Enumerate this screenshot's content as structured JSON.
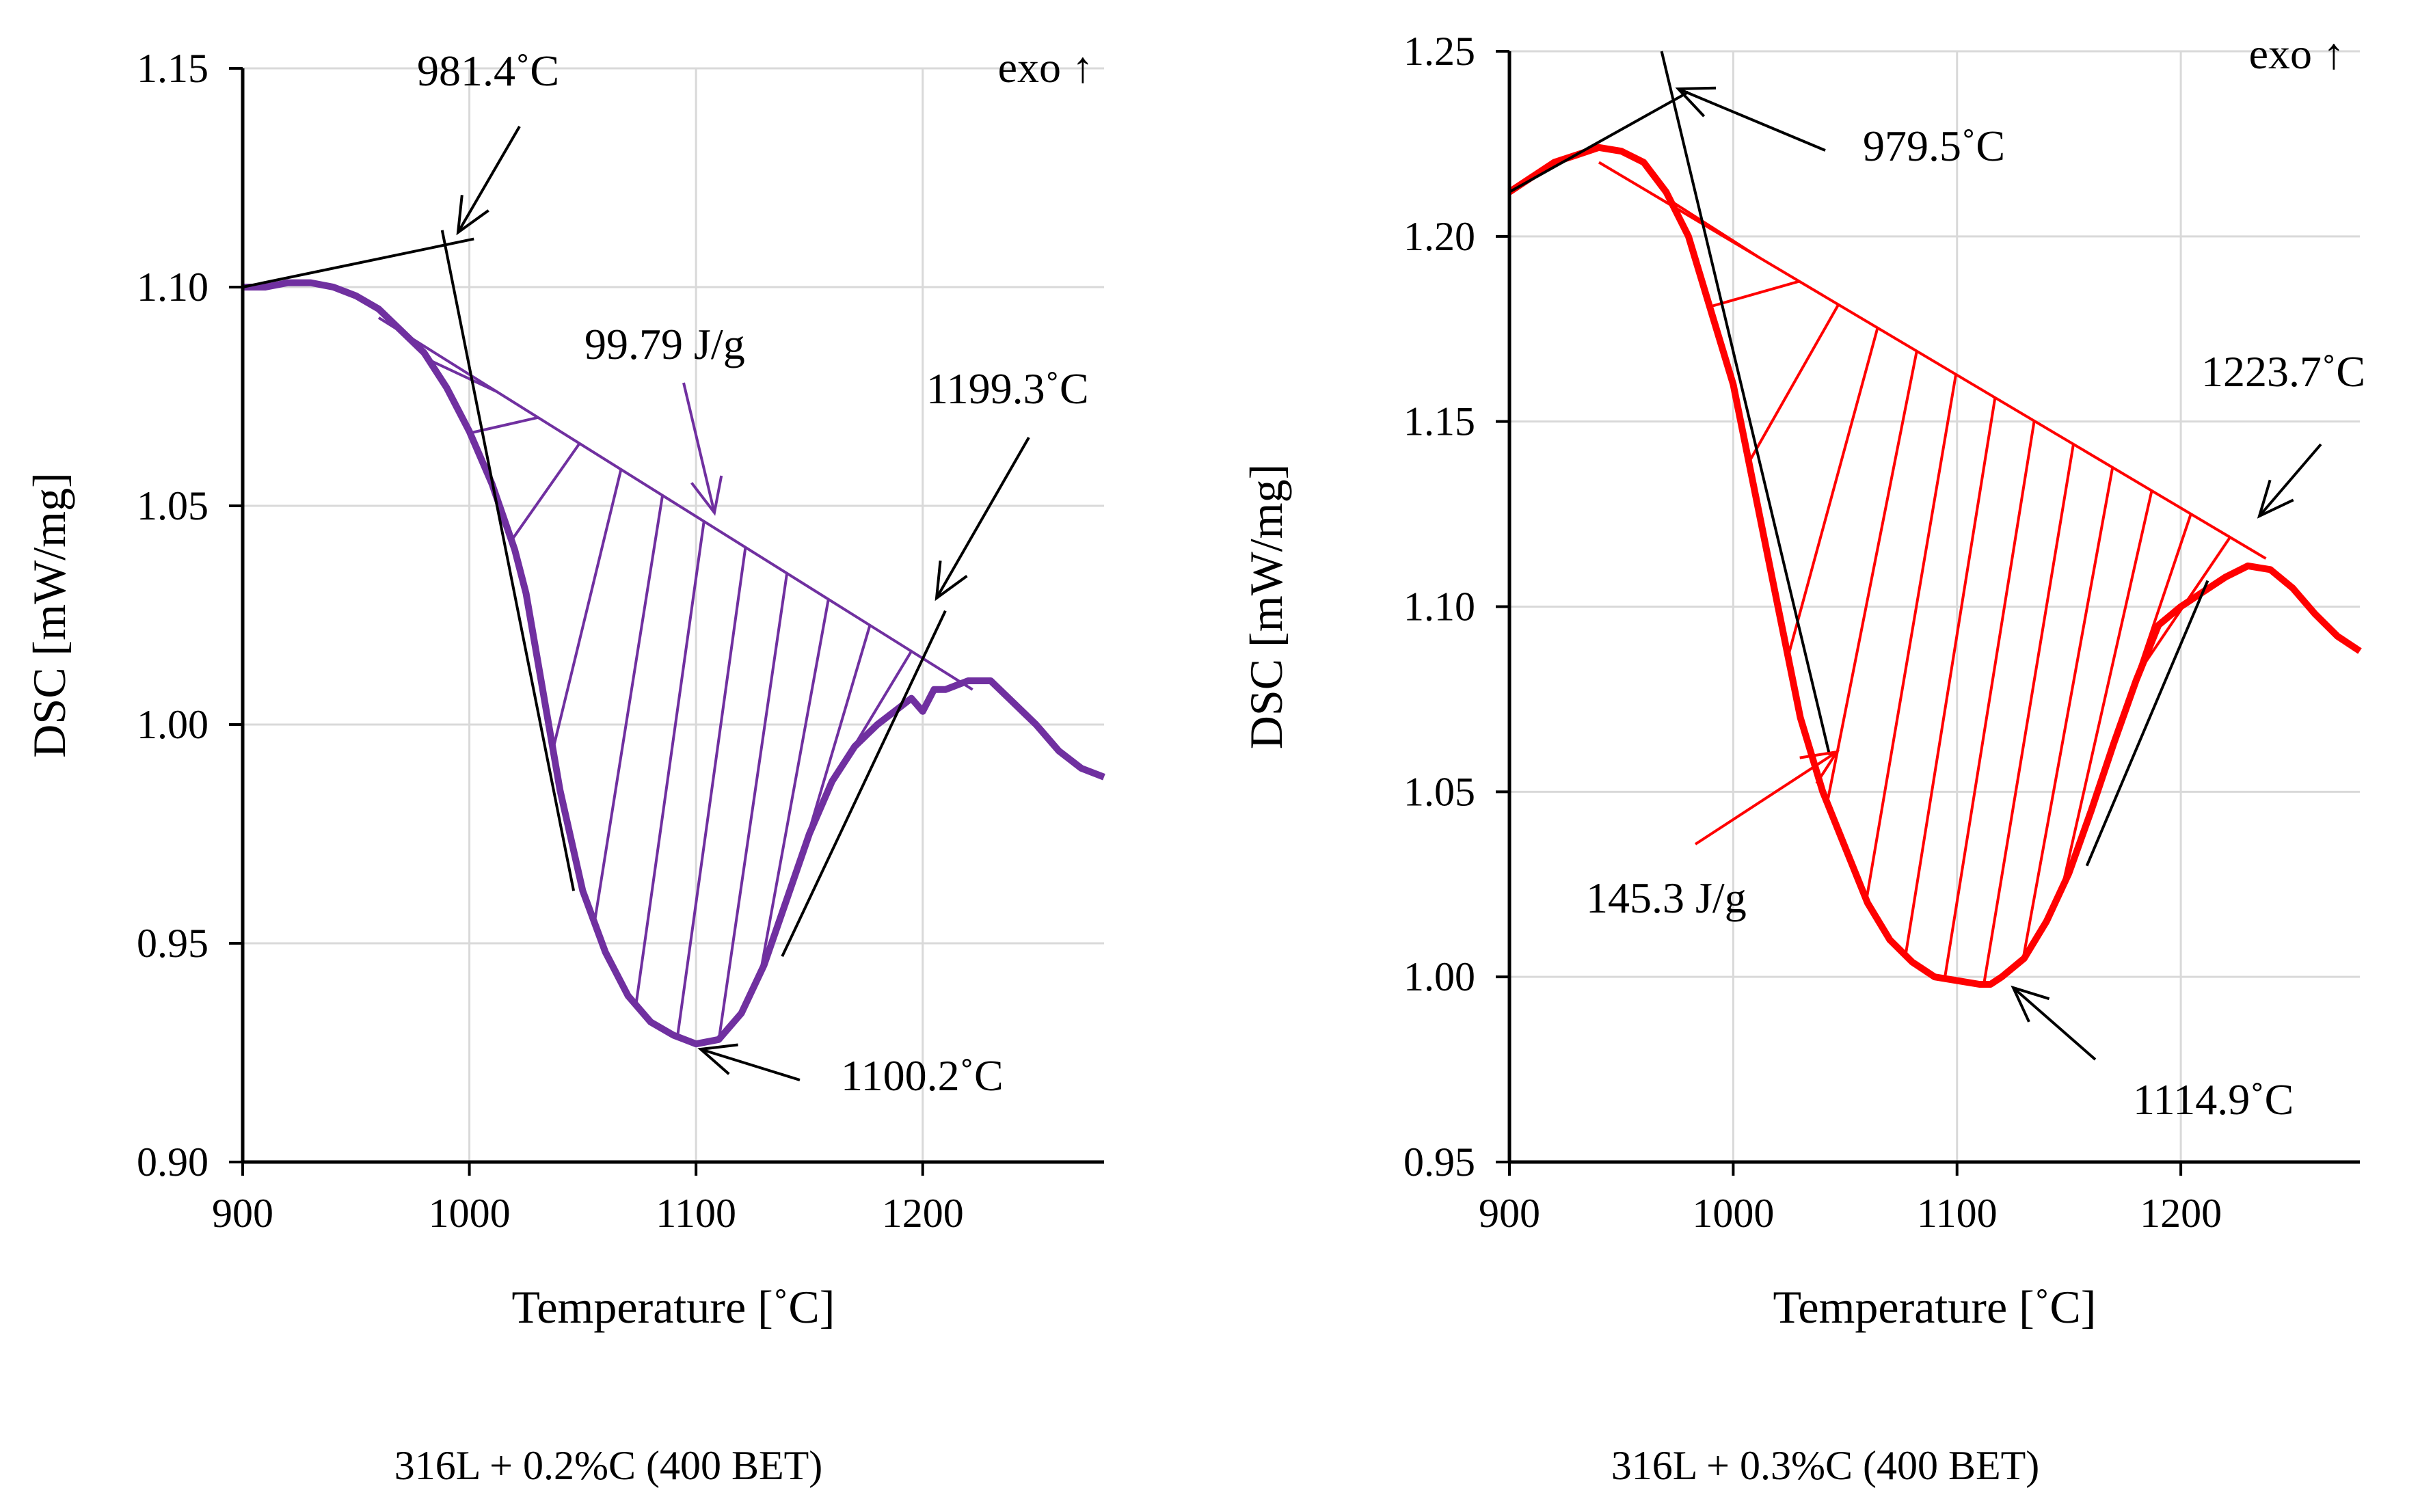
{
  "chart_data": [
    {
      "type": "line",
      "caption": "316L + 0.2%C (400 BET)",
      "xlabel": "Temperature [˚C]",
      "ylabel": "DSC [mW/mg]",
      "xlim": [
        900,
        1280
      ],
      "ylim": [
        0.9,
        1.15
      ],
      "xticks": [
        900,
        1000,
        1100,
        1200
      ],
      "xtick_labels": [
        "900",
        "1000",
        "1100",
        "1200"
      ],
      "yticks": [
        0.9,
        0.95,
        1.0,
        1.05,
        1.1,
        1.15
      ],
      "ytick_labels": [
        "0.90",
        "0.95",
        "1.00",
        "1.05",
        "1.10",
        "1.15"
      ],
      "color": "#7030a0",
      "exo_label": "exo ↑",
      "series": [
        {
          "name": "DSC",
          "x": [
            900,
            910,
            920,
            930,
            940,
            950,
            960,
            970,
            980,
            990,
            1000,
            1010,
            1020,
            1025,
            1030,
            1040,
            1050,
            1060,
            1070,
            1080,
            1090,
            1100,
            1110,
            1120,
            1130,
            1140,
            1150,
            1160,
            1170,
            1180,
            1190,
            1195,
            1200,
            1205,
            1210,
            1220,
            1230,
            1240,
            1250,
            1260,
            1270,
            1280
          ],
          "y": [
            1.1,
            1.1,
            1.101,
            1.101,
            1.1,
            1.098,
            1.095,
            1.09,
            1.085,
            1.077,
            1.067,
            1.055,
            1.04,
            1.03,
            1.015,
            0.985,
            0.962,
            0.948,
            0.938,
            0.932,
            0.929,
            0.927,
            0.928,
            0.934,
            0.945,
            0.96,
            0.975,
            0.987,
            0.995,
            1.0,
            1.004,
            1.006,
            1.003,
            1.008,
            1.008,
            1.01,
            1.01,
            1.005,
            1.0,
            0.994,
            0.99,
            0.988
          ]
        }
      ],
      "baseline": {
        "x": [
          960,
          1222
        ],
        "y": [
          1.093,
          1.008
        ]
      },
      "onset_tangent": {
        "x": [
          988,
          1046
        ],
        "y": [
          1.113,
          0.962
        ]
      },
      "offset_tangent": {
        "x": [
          1138,
          1210
        ],
        "y": [
          0.947,
          1.026
        ]
      },
      "baseline_ext": {
        "x": [
          900,
          1002
        ],
        "y": [
          1.1,
          1.111
        ]
      },
      "hatch_ranges": [
        1002,
        1195
      ],
      "peak_label": "1100.2˚C",
      "onset_label": "981.4˚C",
      "offset_label": "1199.3˚C",
      "area_label": "99.79 J/g",
      "peak": {
        "x": 1100,
        "y": 0.927
      }
    },
    {
      "type": "line",
      "caption": "316L + 0.3%C (400 BET)",
      "xlabel": "Temperature [˚C]",
      "ylabel": "DSC [mW/mg]",
      "xlim": [
        900,
        1280
      ],
      "ylim": [
        0.95,
        1.25
      ],
      "xticks": [
        900,
        1000,
        1100,
        1200
      ],
      "xtick_labels": [
        "900",
        "1000",
        "1100",
        "1200"
      ],
      "yticks": [
        0.95,
        1.0,
        1.05,
        1.1,
        1.15,
        1.2,
        1.25
      ],
      "ytick_labels": [
        "0.95",
        "1.00",
        "1.05",
        "1.10",
        "1.15",
        "1.20",
        "1.25"
      ],
      "color": "#ff0000",
      "exo_label": "exo ↑",
      "series": [
        {
          "name": "DSC",
          "x": [
            900,
            910,
            920,
            930,
            940,
            950,
            960,
            970,
            980,
            990,
            1000,
            1010,
            1020,
            1030,
            1040,
            1050,
            1060,
            1070,
            1080,
            1090,
            1100,
            1110,
            1115,
            1120,
            1130,
            1140,
            1150,
            1160,
            1170,
            1180,
            1190,
            1200,
            1210,
            1220,
            1230,
            1240,
            1250,
            1260,
            1270,
            1280
          ],
          "y": [
            1.212,
            1.216,
            1.22,
            1.222,
            1.224,
            1.223,
            1.22,
            1.212,
            1.2,
            1.18,
            1.16,
            1.13,
            1.1,
            1.07,
            1.05,
            1.035,
            1.02,
            1.01,
            1.004,
            1.0,
            0.999,
            0.998,
            0.998,
            1.0,
            1.005,
            1.015,
            1.028,
            1.045,
            1.063,
            1.08,
            1.095,
            1.1,
            1.104,
            1.108,
            1.111,
            1.11,
            1.105,
            1.098,
            1.092,
            1.088
          ]
        }
      ],
      "baseline": {
        "x": [
          940,
          1238
        ],
        "y": [
          1.22,
          1.113
        ]
      },
      "onset_tangent": {
        "x": [
          968,
          1043
        ],
        "y": [
          1.25,
          1.06
        ]
      },
      "offset_tangent": {
        "x": [
          1158,
          1212
        ],
        "y": [
          1.03,
          1.107
        ]
      },
      "baseline_ext": {
        "x": [
          900,
          980
        ],
        "y": [
          1.212,
          1.239
        ]
      },
      "hatch_ranges": [
        1002,
        1222
      ],
      "peak_label": "1114.9˚C",
      "onset_label": "979.5˚C",
      "offset_label": "1223.7˚C",
      "area_label": "145.3 J/g",
      "peak": {
        "x": 1117,
        "y": 0.998
      }
    }
  ]
}
